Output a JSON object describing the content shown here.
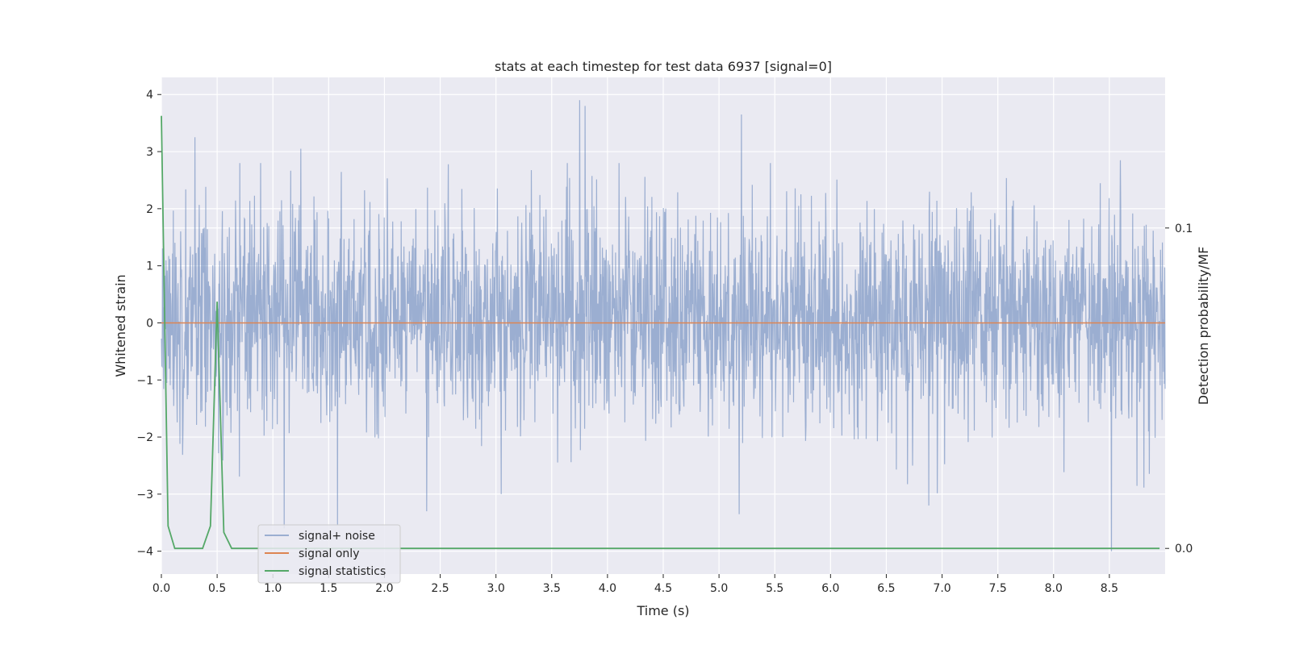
{
  "chart_data": {
    "type": "line",
    "title": "stats at each timestep for test data 6937 [signal=0]",
    "xlabel": "Time (s)",
    "ylabel": "Whitened strain",
    "ylabel_right": "Detection probability/MF",
    "xlim": [
      0.0,
      9.0
    ],
    "ylim": [
      -4.4,
      4.3
    ],
    "ylim_right": [
      -0.008,
      0.147
    ],
    "x_ticks": [
      "0.0",
      "0.5",
      "1.0",
      "1.5",
      "2.0",
      "2.5",
      "3.0",
      "3.5",
      "4.0",
      "4.5",
      "5.0",
      "5.5",
      "6.0",
      "6.5",
      "7.0",
      "7.5",
      "8.0",
      "8.5"
    ],
    "y_ticks": [
      "−4",
      "−3",
      "−2",
      "−1",
      "0",
      "1",
      "2",
      "3",
      "4"
    ],
    "y_ticks_right": [
      "0.0",
      "0.1"
    ],
    "grid": true,
    "legend_position": "lower-left",
    "series": [
      {
        "name": "signal+ noise",
        "color": "#4c72b0",
        "axis": "left",
        "style": "dense noise, approx. Gaussian, std ~1, spanning 0.0–9.0 s",
        "envelope": {
          "typical_max": 2.3,
          "typical_min": -2.1
        },
        "notable_peaks": [
          {
            "x": 0.3,
            "y": 3.25
          },
          {
            "x": 1.25,
            "y": 3.05
          },
          {
            "x": 3.75,
            "y": 3.9
          },
          {
            "x": 3.8,
            "y": 3.8
          },
          {
            "x": 5.2,
            "y": 3.65
          },
          {
            "x": 8.6,
            "y": 2.85
          }
        ],
        "notable_troughs": [
          {
            "x": 1.1,
            "y": -3.6
          },
          {
            "x": 1.58,
            "y": -3.55
          },
          {
            "x": 2.38,
            "y": -3.3
          },
          {
            "x": 5.18,
            "y": -3.35
          },
          {
            "x": 6.88,
            "y": -3.2
          },
          {
            "x": 8.52,
            "y": -4.0
          }
        ]
      },
      {
        "name": "signal only",
        "color": "#dd8452",
        "axis": "left",
        "x": [
          0.0,
          9.0
        ],
        "y": [
          0.0,
          0.0
        ]
      },
      {
        "name": "signal statistics",
        "color": "#55a868",
        "axis": "right",
        "x": [
          0.0,
          0.06,
          0.12,
          0.37,
          0.44,
          0.5,
          0.56,
          0.63,
          8.95
        ],
        "y": [
          0.135,
          0.007,
          0.0,
          0.0,
          0.007,
          0.077,
          0.005,
          0.0,
          0.0
        ]
      }
    ]
  }
}
